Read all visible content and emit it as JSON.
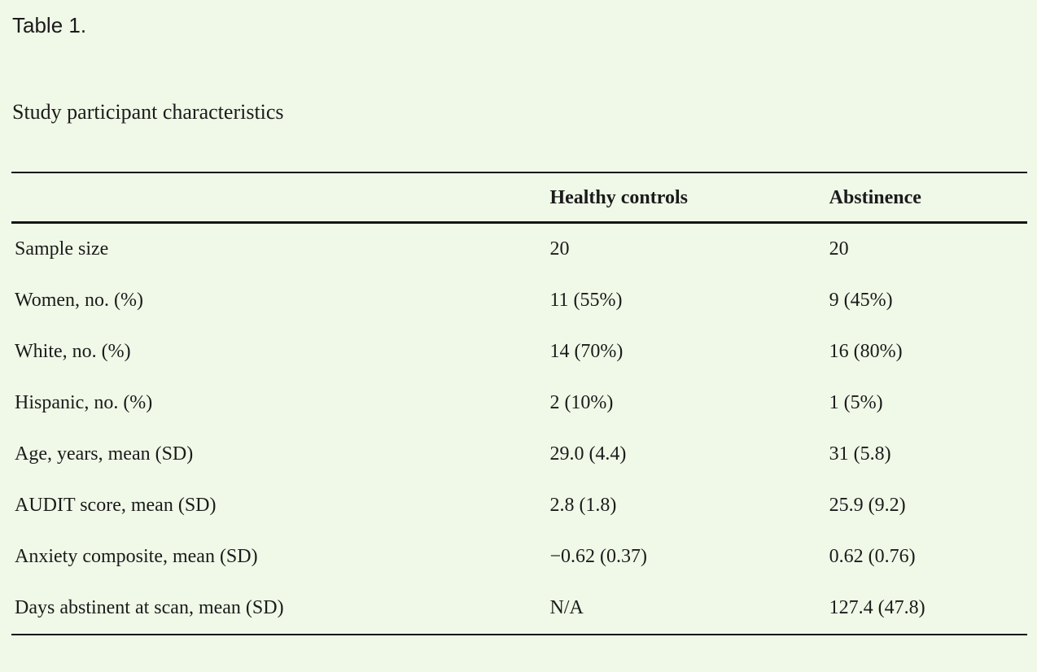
{
  "page": {
    "background_color": "#f0f9e8",
    "text_color": "#1b1b1b",
    "rule_color": "#141414"
  },
  "table": {
    "eyebrow": "Table 1.",
    "caption": "Study participant characteristics",
    "columns": {
      "label": "",
      "healthy": "Healthy controls",
      "abstinence": "Abstinence"
    },
    "rows": [
      {
        "label": "Sample size",
        "healthy": "20",
        "abstinence": "20"
      },
      {
        "label": "Women, no. (%)",
        "healthy": "11 (55%)",
        "abstinence": "9 (45%)"
      },
      {
        "label": "White, no. (%)",
        "healthy": "14 (70%)",
        "abstinence": "16 (80%)"
      },
      {
        "label": "Hispanic, no. (%)",
        "healthy": "2 (10%)",
        "abstinence": "1 (5%)"
      },
      {
        "label": "Age, years, mean (SD)",
        "healthy": "29.0 (4.4)",
        "abstinence": "31 (5.8)"
      },
      {
        "label": "AUDIT score, mean (SD)",
        "healthy": "2.8 (1.8)",
        "abstinence": "25.9 (9.2)"
      },
      {
        "label": "Anxiety composite, mean (SD)",
        "healthy": "−0.62 (0.37)",
        "abstinence": "0.62 (0.76)"
      },
      {
        "label": "Days abstinent at scan, mean (SD)",
        "healthy": "N/A",
        "abstinence": "127.4 (47.8)"
      }
    ]
  }
}
